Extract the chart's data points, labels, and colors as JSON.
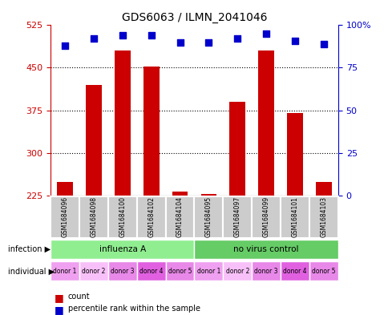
{
  "title": "GDS6063 / ILMN_2041046",
  "samples": [
    "GSM1684096",
    "GSM1684098",
    "GSM1684100",
    "GSM1684102",
    "GSM1684104",
    "GSM1684095",
    "GSM1684097",
    "GSM1684099",
    "GSM1684101",
    "GSM1684103"
  ],
  "counts": [
    248,
    420,
    480,
    452,
    232,
    228,
    390,
    480,
    370,
    248
  ],
  "percentiles": [
    88,
    92,
    94,
    94,
    90,
    90,
    92,
    95,
    91,
    89
  ],
  "ylim_left": [
    225,
    525
  ],
  "yticks_left": [
    225,
    300,
    375,
    450,
    525
  ],
  "ylim_right": [
    0,
    100
  ],
  "yticks_right": [
    0,
    25,
    50,
    75,
    100
  ],
  "infection_groups": [
    {
      "label": "influenza A",
      "start": 0,
      "end": 5,
      "color": "#90ee90"
    },
    {
      "label": "no virus control",
      "start": 5,
      "end": 10,
      "color": "#66cc66"
    }
  ],
  "individual_labels": [
    "donor 1",
    "donor 2",
    "donor 3",
    "donor 4",
    "donor 5",
    "donor 1",
    "donor 2",
    "donor 3",
    "donor 4",
    "donor 5"
  ],
  "individual_colors": [
    "#f0a0f0",
    "#f8c0f8",
    "#e888e8",
    "#e060e0",
    "#e888e8",
    "#f0a0f0",
    "#f8c0f8",
    "#e888e8",
    "#e060e0",
    "#e888e8"
  ],
  "bar_color": "#cc0000",
  "dot_color": "#0000cc",
  "left_axis_color": "#cc0000",
  "right_axis_color": "#0000cc",
  "sample_bg_color": "#cccccc",
  "legend_count_color": "#cc0000",
  "legend_pct_color": "#0000cc"
}
